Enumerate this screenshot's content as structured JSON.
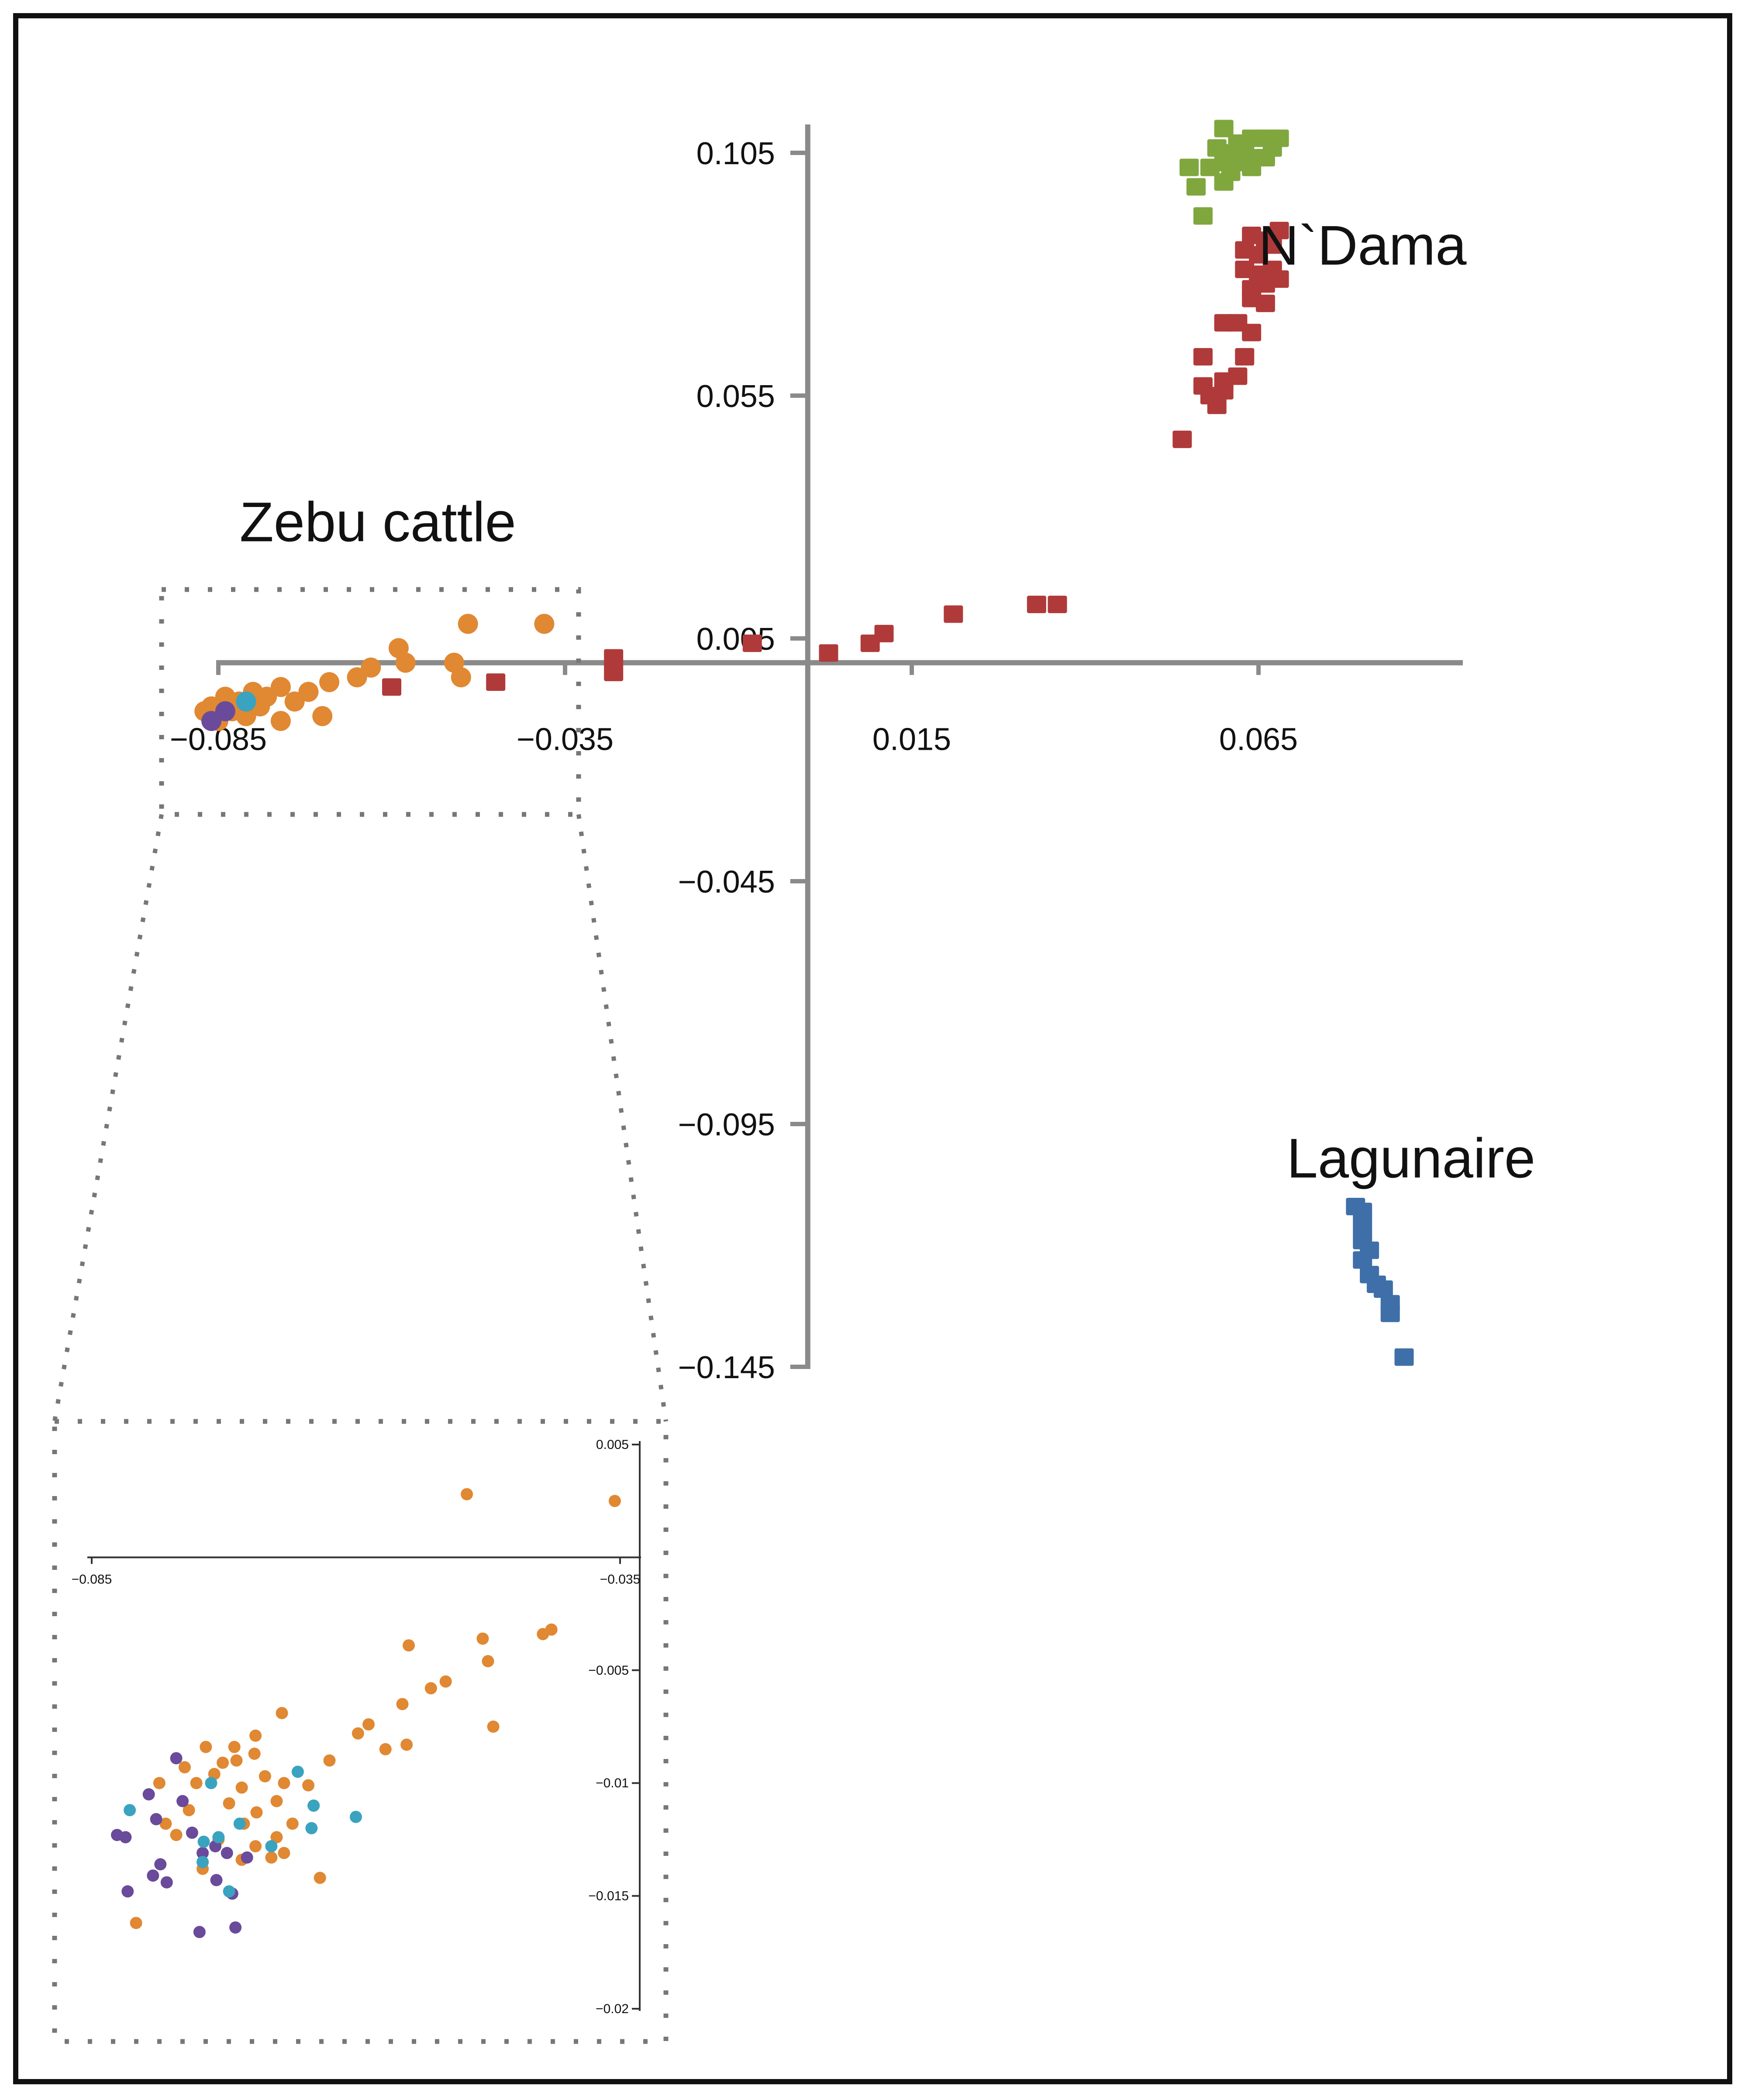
{
  "chart_data": [
    {
      "id": "main",
      "type": "scatter",
      "title": "",
      "xlabel": "",
      "ylabel": "",
      "xlim": [
        -0.085,
        0.09
      ],
      "ylim": [
        -0.145,
        0.11
      ],
      "x_ticks": [
        -0.085,
        -0.035,
        0.015,
        0.065
      ],
      "x_tick_labels": [
        "−0.085",
        "−0.035",
        "0.015",
        "0.065"
      ],
      "y_ticks": [
        0.105,
        0.055,
        0.005,
        -0.045,
        -0.095,
        -0.145
      ],
      "y_tick_labels": [
        "0.105",
        "0.055",
        "0.005",
        "−0.045",
        "−0.095",
        "−0.145"
      ],
      "grid": false,
      "legend": "none",
      "annotations": [
        {
          "text": "N`Dama",
          "x": 0.08,
          "y": 0.082
        },
        {
          "text": "Lagunaire",
          "x": 0.087,
          "y": -0.106
        },
        {
          "text": "Zebu cattle",
          "x": -0.062,
          "y": 0.025
        }
      ],
      "series": [
        {
          "name": "green",
          "color": "#7fa73e",
          "marker": "square",
          "points": [
            [
              0.06,
              0.11
            ],
            [
              0.062,
              0.107
            ],
            [
              0.064,
              0.108
            ],
            [
              0.066,
              0.108
            ],
            [
              0.068,
              0.108
            ],
            [
              0.059,
              0.106
            ],
            [
              0.061,
              0.105
            ],
            [
              0.063,
              0.105
            ],
            [
              0.065,
              0.104
            ],
            [
              0.067,
              0.106
            ],
            [
              0.055,
              0.102
            ],
            [
              0.058,
              0.102
            ],
            [
              0.06,
              0.103
            ],
            [
              0.062,
              0.103
            ],
            [
              0.064,
              0.102
            ],
            [
              0.066,
              0.104
            ],
            [
              0.061,
              0.101
            ],
            [
              0.056,
              0.098
            ],
            [
              0.06,
              0.099
            ],
            [
              0.057,
              0.092
            ]
          ]
        },
        {
          "name": "red",
          "color": "#b03a3a",
          "marker": "square",
          "points": [
            [
              0.064,
              0.088
            ],
            [
              0.066,
              0.087
            ],
            [
              0.068,
              0.089
            ],
            [
              0.063,
              0.085
            ],
            [
              0.065,
              0.084
            ],
            [
              0.067,
              0.086
            ],
            [
              0.063,
              0.081
            ],
            [
              0.065,
              0.08
            ],
            [
              0.067,
              0.081
            ],
            [
              0.064,
              0.077
            ],
            [
              0.066,
              0.078
            ],
            [
              0.068,
              0.079
            ],
            [
              0.064,
              0.075
            ],
            [
              0.066,
              0.074
            ],
            [
              0.06,
              0.07
            ],
            [
              0.062,
              0.07
            ],
            [
              0.064,
              0.068
            ],
            [
              0.057,
              0.063
            ],
            [
              0.063,
              0.063
            ],
            [
              0.06,
              0.058
            ],
            [
              0.062,
              0.059
            ],
            [
              0.058,
              0.055
            ],
            [
              0.06,
              0.056
            ],
            [
              0.059,
              0.053
            ],
            [
              0.057,
              0.057
            ],
            [
              0.054,
              0.046
            ],
            [
              0.036,
              0.012
            ],
            [
              0.033,
              0.012
            ],
            [
              0.021,
              0.01
            ],
            [
              0.011,
              0.006
            ],
            [
              0.009,
              0.004
            ],
            [
              0.003,
              0.002
            ],
            [
              -0.008,
              0.004
            ],
            [
              -0.028,
              0.001
            ],
            [
              -0.028,
              -0.002
            ],
            [
              -0.045,
              -0.004
            ],
            [
              -0.06,
              -0.005
            ]
          ]
        },
        {
          "name": "orange",
          "color": "#e08832",
          "marker": "circle",
          "points": [
            [
              -0.038,
              0.008
            ],
            [
              -0.049,
              0.008
            ],
            [
              -0.059,
              0.003
            ],
            [
              -0.051,
              0.0
            ],
            [
              -0.058,
              0.0
            ],
            [
              -0.063,
              -0.001
            ],
            [
              -0.05,
              -0.003
            ],
            [
              -0.065,
              -0.003
            ],
            [
              -0.069,
              -0.004
            ],
            [
              -0.072,
              -0.006
            ],
            [
              -0.076,
              -0.005
            ],
            [
              -0.078,
              -0.007
            ],
            [
              -0.08,
              -0.006
            ],
            [
              -0.082,
              -0.008
            ],
            [
              -0.084,
              -0.007
            ],
            [
              -0.086,
              -0.009
            ],
            [
              -0.083,
              -0.01
            ],
            [
              -0.081,
              -0.011
            ],
            [
              -0.079,
              -0.009
            ],
            [
              -0.085,
              -0.012
            ],
            [
              -0.087,
              -0.01
            ],
            [
              -0.076,
              -0.012
            ],
            [
              -0.07,
              -0.011
            ],
            [
              -0.074,
              -0.008
            ]
          ]
        },
        {
          "name": "blue",
          "color": "#3f6fa8",
          "marker": "square",
          "points": [
            [
              0.079,
              -0.112
            ],
            [
              0.08,
              -0.113
            ],
            [
              0.08,
              -0.116
            ],
            [
              0.08,
              -0.119
            ],
            [
              0.081,
              -0.121
            ],
            [
              0.08,
              -0.123
            ],
            [
              0.081,
              -0.126
            ],
            [
              0.082,
              -0.128
            ],
            [
              0.083,
              -0.129
            ],
            [
              0.084,
              -0.132
            ],
            [
              0.084,
              -0.134
            ],
            [
              0.086,
              -0.143
            ]
          ]
        },
        {
          "name": "purple",
          "color": "#6a4a9a",
          "marker": "circle",
          "points": [
            [
              -0.084,
              -0.01
            ],
            [
              -0.086,
              -0.012
            ]
          ]
        },
        {
          "name": "teal",
          "color": "#3aa3c0",
          "marker": "circle",
          "points": [
            [
              -0.081,
              -0.008
            ]
          ]
        }
      ]
    },
    {
      "id": "inset",
      "type": "scatter",
      "title": "",
      "xlabel": "",
      "ylabel": "",
      "xlim": [
        -0.085,
        -0.0335
      ],
      "ylim": [
        -0.02,
        0.005
      ],
      "x_ticks": [
        -0.085,
        -0.035
      ],
      "x_tick_labels": [
        "−0.085",
        "−0.035"
      ],
      "y_ticks": [
        0.005,
        -0.005,
        -0.01,
        -0.015,
        -0.02
      ],
      "y_tick_labels": [
        "0.005",
        "−0.005",
        "−0.01",
        "−0.015",
        "−0.02"
      ],
      "grid": false,
      "legend": "none",
      "series": [
        {
          "name": "orange",
          "color": "#e08832",
          "points": [
            [
              -0.0495,
              0.0028
            ],
            [
              -0.0355,
              0.0025
            ],
            [
              -0.0415,
              -0.0032
            ],
            [
              -0.0423,
              -0.0034
            ],
            [
              -0.048,
              -0.0036
            ],
            [
              -0.055,
              -0.0039
            ],
            [
              -0.0475,
              -0.0046
            ],
            [
              -0.0529,
              -0.0058
            ],
            [
              -0.0556,
              -0.0065
            ],
            [
              -0.0515,
              -0.0055
            ],
            [
              -0.047,
              -0.0075
            ],
            [
              -0.0588,
              -0.0074
            ],
            [
              -0.0572,
              -0.0085
            ],
            [
              -0.0552,
              -0.0083
            ],
            [
              -0.0598,
              -0.0078
            ],
            [
              -0.0625,
              -0.009
            ],
            [
              -0.067,
              -0.0069
            ],
            [
              -0.0695,
              -0.0079
            ],
            [
              -0.0715,
              -0.0084
            ],
            [
              -0.0742,
              -0.0084
            ],
            [
              -0.0713,
              -0.009
            ],
            [
              -0.0696,
              -0.0087
            ],
            [
              -0.0726,
              -0.0091
            ],
            [
              -0.0762,
              -0.0093
            ],
            [
              -0.0734,
              -0.0096
            ],
            [
              -0.0686,
              -0.0097
            ],
            [
              -0.0751,
              -0.01
            ],
            [
              -0.0786,
              -0.01
            ],
            [
              -0.0708,
              -0.0102
            ],
            [
              -0.0668,
              -0.01
            ],
            [
              -0.0645,
              -0.0101
            ],
            [
              -0.064,
              -0.011
            ],
            [
              -0.0675,
              -0.0108
            ],
            [
              -0.072,
              -0.0109
            ],
            [
              -0.0694,
              -0.0113
            ],
            [
              -0.0706,
              -0.0118
            ],
            [
              -0.0758,
              -0.0112
            ],
            [
              -0.078,
              -0.0118
            ],
            [
              -0.077,
              -0.0123
            ],
            [
              -0.073,
              -0.0125
            ],
            [
              -0.0695,
              -0.0128
            ],
            [
              -0.066,
              -0.0118
            ],
            [
              -0.0675,
              -0.0124
            ],
            [
              -0.0708,
              -0.0134
            ],
            [
              -0.0668,
              -0.0131
            ],
            [
              -0.068,
              -0.0133
            ],
            [
              -0.0634,
              -0.0142
            ],
            [
              -0.0745,
              -0.0138
            ],
            [
              -0.0808,
              -0.0162
            ]
          ]
        },
        {
          "name": "purple",
          "color": "#6a4a9a",
          "points": [
            [
              -0.077,
              -0.0089
            ],
            [
              -0.0796,
              -0.0105
            ],
            [
              -0.0764,
              -0.0108
            ],
            [
              -0.0826,
              -0.0123
            ],
            [
              -0.0818,
              -0.0124
            ],
            [
              -0.0789,
              -0.0116
            ],
            [
              -0.0755,
              -0.0122
            ],
            [
              -0.0745,
              -0.0131
            ],
            [
              -0.0733,
              -0.0128
            ],
            [
              -0.0722,
              -0.0131
            ],
            [
              -0.0703,
              -0.0133
            ],
            [
              -0.0785,
              -0.0136
            ],
            [
              -0.0792,
              -0.0141
            ],
            [
              -0.0779,
              -0.0144
            ],
            [
              -0.0816,
              -0.0148
            ],
            [
              -0.0732,
              -0.0143
            ],
            [
              -0.0717,
              -0.0149
            ],
            [
              -0.0714,
              -0.0164
            ],
            [
              -0.0748,
              -0.0166
            ]
          ]
        },
        {
          "name": "teal",
          "color": "#3aa3c0",
          "points": [
            [
              -0.0655,
              -0.0095
            ],
            [
              -0.0737,
              -0.01
            ],
            [
              -0.064,
              -0.011
            ],
            [
              -0.071,
              -0.0118
            ],
            [
              -0.0814,
              -0.0112
            ],
            [
              -0.0642,
              -0.012
            ],
            [
              -0.073,
              -0.0124
            ],
            [
              -0.0744,
              -0.0126
            ],
            [
              -0.068,
              -0.0128
            ],
            [
              -0.0745,
              -0.0135
            ],
            [
              -0.072,
              -0.0148
            ],
            [
              -0.06,
              -0.0115
            ]
          ]
        }
      ]
    }
  ]
}
